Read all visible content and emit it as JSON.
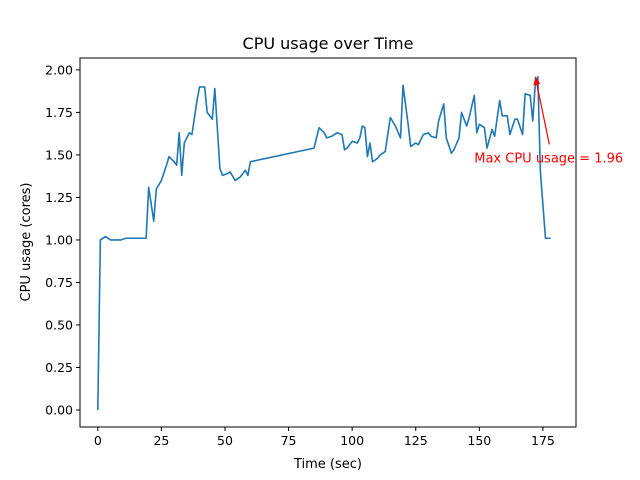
{
  "chart_data": {
    "type": "line",
    "title": "CPU usage over Time",
    "xlabel": "Time (sec)",
    "ylabel": "CPU usage (cores)",
    "xlim": [
      -7,
      188
    ],
    "ylim": [
      -0.1,
      2.07
    ],
    "x_ticks": [
      0,
      25,
      50,
      75,
      100,
      125,
      150,
      175
    ],
    "y_ticks": [
      0.0,
      0.25,
      0.5,
      0.75,
      1.0,
      1.25,
      1.5,
      1.75,
      2.0
    ],
    "x_tick_labels": [
      "0",
      "25",
      "50",
      "75",
      "100",
      "125",
      "150",
      "175"
    ],
    "y_tick_labels": [
      "0.00",
      "0.25",
      "0.50",
      "0.75",
      "1.00",
      "1.25",
      "1.50",
      "1.75",
      "2.00"
    ],
    "grid": false,
    "colors": {
      "series": "#1f77b4",
      "annotation": "#ff0000"
    },
    "series": [
      {
        "x": [
          0,
          1,
          3,
          5,
          7,
          9,
          11,
          13,
          15,
          19,
          20,
          22,
          23,
          25,
          27,
          28,
          30,
          31,
          32,
          33,
          34,
          36,
          37,
          39,
          40,
          42,
          43,
          45,
          46,
          48,
          49,
          51,
          52,
          54,
          56,
          58,
          59,
          60,
          85,
          87,
          89,
          90,
          92,
          94,
          96,
          97,
          98,
          100,
          102,
          103,
          104,
          105,
          106,
          107,
          108,
          110,
          111,
          113,
          115,
          117,
          119,
          120,
          122,
          123,
          125,
          126,
          128,
          130,
          131,
          133,
          134,
          136,
          137,
          139,
          140,
          142,
          143,
          145,
          146,
          148,
          149,
          150,
          152,
          153,
          155,
          156,
          158,
          159,
          161,
          162,
          164,
          165,
          167,
          168,
          170,
          171,
          172,
          173,
          174,
          176,
          178
        ],
        "y": [
          0.0,
          1.0,
          1.02,
          1.0,
          1.0,
          1.0,
          1.01,
          1.01,
          1.01,
          1.01,
          1.31,
          1.11,
          1.3,
          1.35,
          1.44,
          1.49,
          1.46,
          1.44,
          1.63,
          1.38,
          1.57,
          1.63,
          1.62,
          1.82,
          1.9,
          1.9,
          1.75,
          1.71,
          1.89,
          1.42,
          1.38,
          1.39,
          1.4,
          1.35,
          1.37,
          1.41,
          1.38,
          1.46,
          1.54,
          1.66,
          1.63,
          1.6,
          1.61,
          1.63,
          1.62,
          1.53,
          1.54,
          1.58,
          1.57,
          1.6,
          1.67,
          1.66,
          1.49,
          1.57,
          1.46,
          1.48,
          1.5,
          1.52,
          1.72,
          1.67,
          1.6,
          1.91,
          1.68,
          1.55,
          1.57,
          1.56,
          1.62,
          1.63,
          1.61,
          1.6,
          1.7,
          1.8,
          1.6,
          1.51,
          1.53,
          1.6,
          1.75,
          1.67,
          1.72,
          1.85,
          1.63,
          1.68,
          1.66,
          1.54,
          1.65,
          1.61,
          1.82,
          1.73,
          1.73,
          1.62,
          1.71,
          1.71,
          1.62,
          1.86,
          1.85,
          1.7,
          1.92,
          1.96,
          1.4,
          1.01,
          1.01
        ]
      }
    ],
    "annotation": {
      "text": "Max CPU usage = 1.96",
      "point": [
        172,
        1.96
      ],
      "text_anchor_point": [
        148,
        1.48
      ]
    }
  }
}
